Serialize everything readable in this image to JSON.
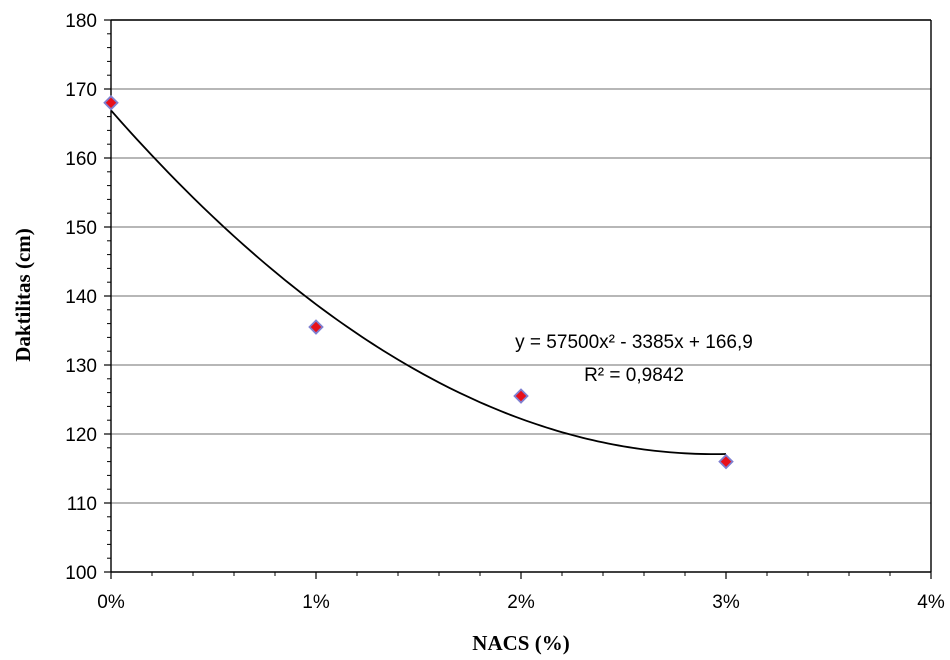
{
  "chart_data": {
    "type": "scatter",
    "title": "",
    "xlabel": "NACS (%)",
    "ylabel": "Daktilitas (cm)",
    "xlim": [
      0,
      0.04
    ],
    "ylim": [
      100,
      180
    ],
    "x_tick_values": [
      0,
      0.01,
      0.02,
      0.03,
      0.04
    ],
    "x_tick_labels": [
      "0%",
      "1%",
      "2%",
      "3%",
      "4%"
    ],
    "y_tick_values": [
      100,
      110,
      120,
      130,
      140,
      150,
      160,
      170,
      180
    ],
    "y_tick_labels": [
      "100",
      "110",
      "120",
      "130",
      "140",
      "150",
      "160",
      "170",
      "180"
    ],
    "grid": "horizontal",
    "series": [
      {
        "x": [
          0,
          0.01,
          0.02,
          0.03
        ],
        "y": [
          168,
          135.5,
          125.5,
          116
        ],
        "marker": "diamond",
        "marker_fill": "#e8101a",
        "marker_edge": "#7f7fd0"
      }
    ],
    "trendline": {
      "type": "polynomial",
      "order": 2,
      "coefficients": [
        57500,
        -3385,
        166.9
      ],
      "equation_text": "y = 57500x² - 3385x + 166,9",
      "r2_text": "R² = 0,9842",
      "color": "#000000"
    }
  }
}
